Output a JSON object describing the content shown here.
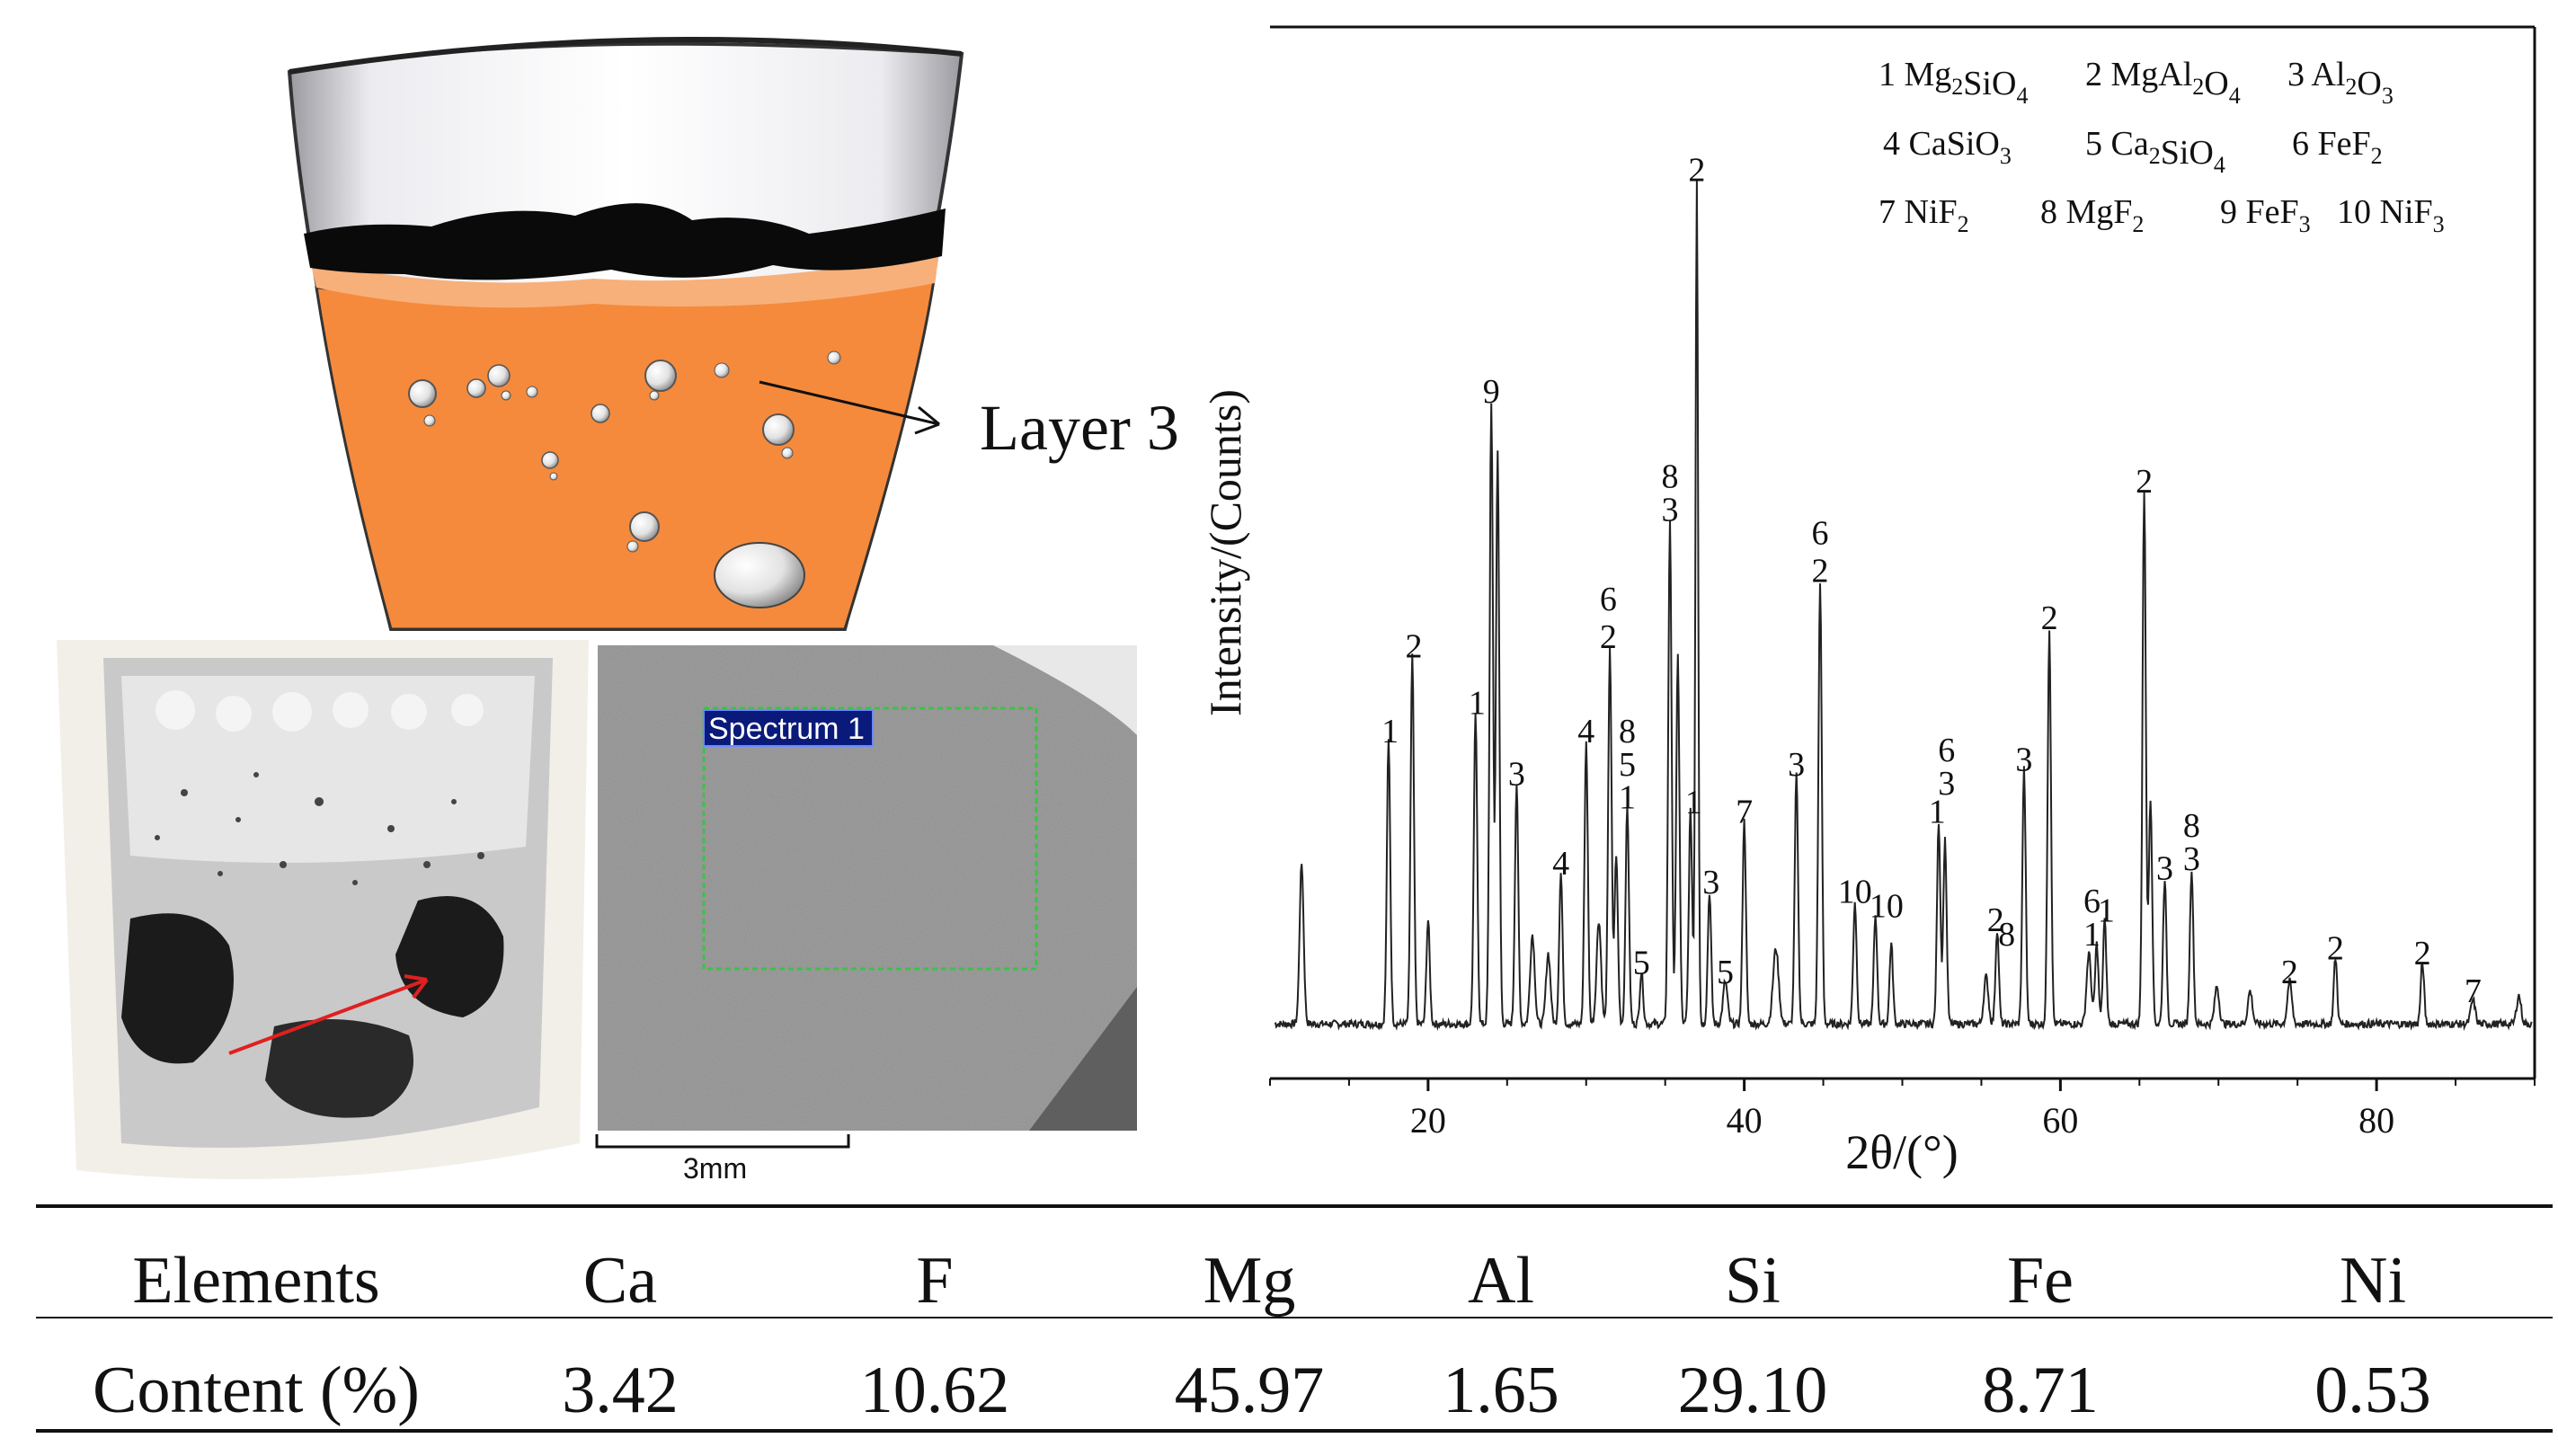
{
  "figure": {
    "crucible_label": "Layer 3",
    "sem": {
      "spectrum_label": "Spectrum 1",
      "scale_label": "3mm"
    }
  },
  "chart_data": {
    "type": "line",
    "title": "",
    "xlabel": "2θ/(°)",
    "ylabel": "Intensity/(Counts)",
    "xlim": [
      10,
      90
    ],
    "ylim": [
      0,
      1000
    ],
    "xticks": [
      20,
      40,
      60,
      80
    ],
    "grid": false,
    "legend_position": "top-right",
    "legend": [
      {
        "id": "1",
        "name": "Mg",
        "sub1": "2",
        "mid": "SiO",
        "sub2": "4"
      },
      {
        "id": "2",
        "name": "MgAl",
        "sub1": "2",
        "mid": "O",
        "sub2": "4"
      },
      {
        "id": "3",
        "name": "Al",
        "sub1": "2",
        "mid": "O",
        "sub2": "3"
      },
      {
        "id": "4",
        "name": "CaSiO",
        "sub1": "3",
        "mid": "",
        "sub2": ""
      },
      {
        "id": "5",
        "name": "Ca",
        "sub1": "2",
        "mid": "SiO",
        "sub2": "4"
      },
      {
        "id": "6",
        "name": "FeF",
        "sub1": "2",
        "mid": "",
        "sub2": ""
      },
      {
        "id": "7",
        "name": "NiF",
        "sub1": "2",
        "mid": "",
        "sub2": ""
      },
      {
        "id": "8",
        "name": "MgF",
        "sub1": "2",
        "mid": "",
        "sub2": ""
      },
      {
        "id": "9",
        "name": "FeF",
        "sub1": "3",
        "mid": "",
        "sub2": ""
      },
      {
        "id": "10",
        "name": "NiF",
        "sub1": "3",
        "mid": "",
        "sub2": ""
      }
    ],
    "baseline": 15,
    "peaks": [
      {
        "x": 12.0,
        "y": 170,
        "w": 0.18
      },
      {
        "x": 17.5,
        "y": 300,
        "w": 0.15
      },
      {
        "x": 19.0,
        "y": 390,
        "w": 0.15
      },
      {
        "x": 20.0,
        "y": 110,
        "w": 0.15
      },
      {
        "x": 23.0,
        "y": 330,
        "w": 0.15
      },
      {
        "x": 24.0,
        "y": 660,
        "w": 0.15
      },
      {
        "x": 24.4,
        "y": 610,
        "w": 0.15
      },
      {
        "x": 25.6,
        "y": 255,
        "w": 0.15
      },
      {
        "x": 26.6,
        "y": 95,
        "w": 0.2
      },
      {
        "x": 27.6,
        "y": 75,
        "w": 0.2
      },
      {
        "x": 28.4,
        "y": 160,
        "w": 0.15
      },
      {
        "x": 30.0,
        "y": 300,
        "w": 0.15
      },
      {
        "x": 30.8,
        "y": 110,
        "w": 0.2
      },
      {
        "x": 31.5,
        "y": 400,
        "w": 0.15
      },
      {
        "x": 31.9,
        "y": 180,
        "w": 0.15
      },
      {
        "x": 32.6,
        "y": 230,
        "w": 0.15
      },
      {
        "x": 33.5,
        "y": 55,
        "w": 0.15
      },
      {
        "x": 35.3,
        "y": 535,
        "w": 0.15
      },
      {
        "x": 35.8,
        "y": 390,
        "w": 0.15
      },
      {
        "x": 36.6,
        "y": 225,
        "w": 0.15
      },
      {
        "x": 37.0,
        "y": 895,
        "w": 0.12
      },
      {
        "x": 37.8,
        "y": 140,
        "w": 0.15
      },
      {
        "x": 38.8,
        "y": 45,
        "w": 0.2
      },
      {
        "x": 40.0,
        "y": 215,
        "w": 0.15
      },
      {
        "x": 42.0,
        "y": 80,
        "w": 0.25
      },
      {
        "x": 43.3,
        "y": 265,
        "w": 0.15
      },
      {
        "x": 44.8,
        "y": 470,
        "w": 0.15
      },
      {
        "x": 47.0,
        "y": 130,
        "w": 0.15
      },
      {
        "x": 48.3,
        "y": 115,
        "w": 0.15
      },
      {
        "x": 49.3,
        "y": 85,
        "w": 0.15
      },
      {
        "x": 52.3,
        "y": 215,
        "w": 0.15
      },
      {
        "x": 52.7,
        "y": 195,
        "w": 0.15
      },
      {
        "x": 55.3,
        "y": 50,
        "w": 0.2
      },
      {
        "x": 56.0,
        "y": 100,
        "w": 0.15
      },
      {
        "x": 57.7,
        "y": 270,
        "w": 0.15
      },
      {
        "x": 59.3,
        "y": 420,
        "w": 0.15
      },
      {
        "x": 61.8,
        "y": 75,
        "w": 0.2
      },
      {
        "x": 62.3,
        "y": 85,
        "w": 0.15
      },
      {
        "x": 62.8,
        "y": 110,
        "w": 0.15
      },
      {
        "x": 65.3,
        "y": 565,
        "w": 0.15
      },
      {
        "x": 65.7,
        "y": 240,
        "w": 0.15
      },
      {
        "x": 66.6,
        "y": 155,
        "w": 0.15
      },
      {
        "x": 68.3,
        "y": 165,
        "w": 0.15
      },
      {
        "x": 69.9,
        "y": 40,
        "w": 0.2
      },
      {
        "x": 72.0,
        "y": 35,
        "w": 0.2
      },
      {
        "x": 74.5,
        "y": 45,
        "w": 0.2
      },
      {
        "x": 77.4,
        "y": 70,
        "w": 0.15
      },
      {
        "x": 82.9,
        "y": 65,
        "w": 0.15
      },
      {
        "x": 86.1,
        "y": 25,
        "w": 0.2
      },
      {
        "x": 89.0,
        "y": 30,
        "w": 0.2
      }
    ],
    "peak_labels": [
      {
        "x": 17.6,
        "y": 300,
        "text": "1"
      },
      {
        "x": 19.1,
        "y": 390,
        "text": "2"
      },
      {
        "x": 23.1,
        "y": 330,
        "text": "1"
      },
      {
        "x": 24.0,
        "y": 660,
        "text": "9"
      },
      {
        "x": 25.6,
        "y": 255,
        "text": "3"
      },
      {
        "x": 28.4,
        "y": 160,
        "text": "4"
      },
      {
        "x": 30.0,
        "y": 300,
        "text": "4"
      },
      {
        "x": 31.4,
        "y": 400,
        "text": "2"
      },
      {
        "x": 31.4,
        "y": 440,
        "text": "6"
      },
      {
        "x": 32.6,
        "y": 230,
        "text": "1"
      },
      {
        "x": 32.6,
        "y": 265,
        "text": "5"
      },
      {
        "x": 32.6,
        "y": 300,
        "text": "8"
      },
      {
        "x": 33.5,
        "y": 55,
        "text": "5"
      },
      {
        "x": 35.3,
        "y": 535,
        "text": "3"
      },
      {
        "x": 35.3,
        "y": 570,
        "text": "8"
      },
      {
        "x": 36.8,
        "y": 225,
        "text": "1"
      },
      {
        "x": 37.0,
        "y": 895,
        "text": "2"
      },
      {
        "x": 37.9,
        "y": 140,
        "text": "3"
      },
      {
        "x": 38.8,
        "y": 45,
        "text": "5"
      },
      {
        "x": 40.0,
        "y": 215,
        "text": "7"
      },
      {
        "x": 43.3,
        "y": 265,
        "text": "3"
      },
      {
        "x": 44.8,
        "y": 470,
        "text": "2"
      },
      {
        "x": 44.8,
        "y": 510,
        "text": "6"
      },
      {
        "x": 47.0,
        "y": 130,
        "text": "10"
      },
      {
        "x": 49.0,
        "y": 115,
        "text": "10"
      },
      {
        "x": 52.2,
        "y": 215,
        "text": "1"
      },
      {
        "x": 52.8,
        "y": 245,
        "text": "3"
      },
      {
        "x": 52.8,
        "y": 280,
        "text": "6"
      },
      {
        "x": 55.9,
        "y": 100,
        "text": "2"
      },
      {
        "x": 56.6,
        "y": 85,
        "text": "8"
      },
      {
        "x": 57.7,
        "y": 270,
        "text": "3"
      },
      {
        "x": 59.3,
        "y": 420,
        "text": "2"
      },
      {
        "x": 62.0,
        "y": 85,
        "text": "1"
      },
      {
        "x": 62.0,
        "y": 120,
        "text": "6"
      },
      {
        "x": 62.9,
        "y": 110,
        "text": "1"
      },
      {
        "x": 65.3,
        "y": 565,
        "text": "2"
      },
      {
        "x": 66.6,
        "y": 155,
        "text": "3"
      },
      {
        "x": 68.3,
        "y": 165,
        "text": "3"
      },
      {
        "x": 68.3,
        "y": 200,
        "text": "8"
      },
      {
        "x": 74.5,
        "y": 45,
        "text": "2"
      },
      {
        "x": 77.4,
        "y": 70,
        "text": "2"
      },
      {
        "x": 82.9,
        "y": 65,
        "text": "2"
      },
      {
        "x": 86.1,
        "y": 25,
        "text": "7"
      }
    ]
  },
  "table": {
    "header_label": "Elements",
    "row_label": "Content (%)",
    "elements": [
      "Ca",
      "F",
      "Mg",
      "Al",
      "Si",
      "Fe",
      "Ni"
    ],
    "values": [
      "3.42",
      "10.62",
      "45.97",
      "1.65",
      "29.10",
      "8.71",
      "0.53"
    ]
  }
}
